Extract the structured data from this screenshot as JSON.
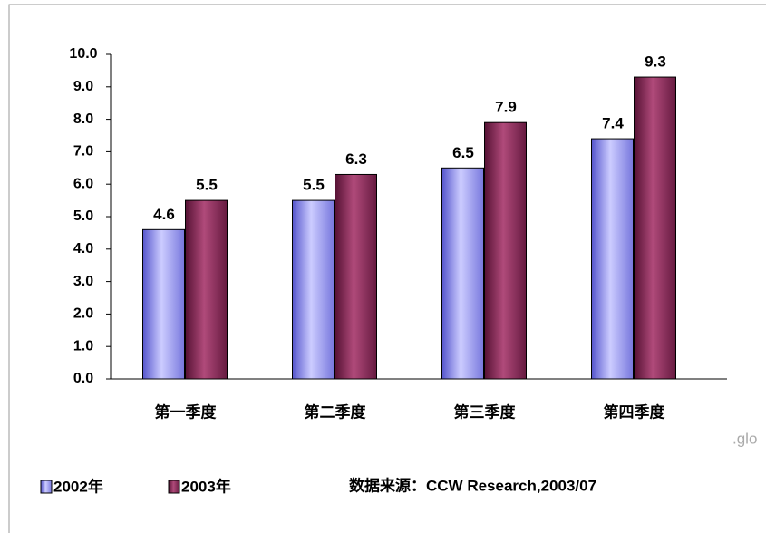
{
  "chart_data": {
    "type": "bar",
    "categories": [
      "第一季度",
      "第二季度",
      "第三季度",
      "第四季度"
    ],
    "series": [
      {
        "name": "2002年",
        "color": "#9999ff",
        "values": [
          4.6,
          5.5,
          6.5,
          7.4
        ]
      },
      {
        "name": "2003年",
        "color": "#993366",
        "values": [
          5.5,
          6.3,
          7.9,
          9.3
        ]
      }
    ],
    "ylim": [
      0,
      10
    ],
    "yticks": [
      {
        "value": 0,
        "label": "0.0"
      },
      {
        "value": 1,
        "label": "1.0"
      },
      {
        "value": 2,
        "label": "2.0"
      },
      {
        "value": 3,
        "label": "3.0"
      },
      {
        "value": 4,
        "label": "4.0"
      },
      {
        "value": 5,
        "label": "5.0"
      },
      {
        "value": 6,
        "label": "6.0"
      },
      {
        "value": 7,
        "label": "7.0"
      },
      {
        "value": 8,
        "label": "8.0"
      },
      {
        "value": 9,
        "label": "9.0"
      },
      {
        "value": 10,
        "label": "10.0"
      }
    ],
    "legend": "bottom-left",
    "source": "数据来源：CCW Research,2003/07",
    "watermark": ".glo"
  }
}
